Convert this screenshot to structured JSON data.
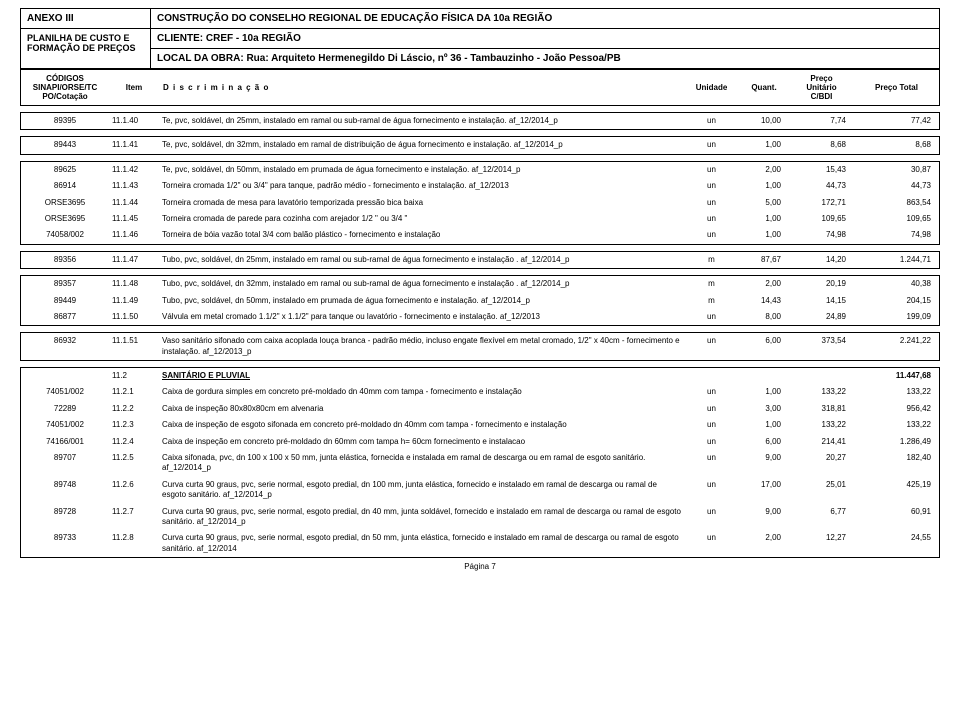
{
  "header": {
    "anexo": "ANEXO III",
    "titulo": "CONSTRUÇÃO DO CONSELHO REGIONAL DE EDUCAÇÃO FÍSICA DA 10a REGIÃO",
    "planilha_l1": "PLANILHA DE CUSTO E",
    "planilha_l2": "FORMAÇÃO DE PREÇOS",
    "cliente": "CLIENTE: CREF - 10a REGIÃO",
    "local": "LOCAL DA OBRA: Rua: Arquiteto Hermenegildo Di Láscio, nº 36 - Tambauzinho - João Pessoa/PB"
  },
  "cols": {
    "c0a": "CÓDIGOS",
    "c0b": "SINAPI/ORSE/TC",
    "c0c": "PO/Cotação",
    "c1": "Item",
    "c2": "D i s c r i m i n a ç ã o",
    "c3": "Unidade",
    "c4": "Quant.",
    "c5a": "Preço",
    "c5b": "Unitário",
    "c5c": "C/BDI",
    "c6": "Preço Total"
  },
  "g1": [
    {
      "code": "89395",
      "item": "11.1.40",
      "desc": "Te, pvc, soldável, dn 25mm, instalado em ramal ou sub-ramal de água fornecimento e instalação. af_12/2014_p",
      "un": "un",
      "q": "10,00",
      "pu": "7,74",
      "pt": "77,42"
    }
  ],
  "g2": [
    {
      "code": "89443",
      "item": "11.1.41",
      "desc": "Te, pvc, soldável, dn 32mm, instalado em ramal de distribuição de água fornecimento e instalação. af_12/2014_p",
      "un": "un",
      "q": "1,00",
      "pu": "8,68",
      "pt": "8,68"
    }
  ],
  "g3": [
    {
      "code": "89625",
      "item": "11.1.42",
      "desc": "Te, pvc, soldável, dn 50mm, instalado em prumada de água fornecimento e instalação. af_12/2014_p",
      "un": "un",
      "q": "2,00",
      "pu": "15,43",
      "pt": "30,87"
    },
    {
      "code": "86914",
      "item": "11.1.43",
      "desc": "Torneira cromada 1/2\" ou 3/4\" para tanque, padrão médio - fornecimento e instalação. af_12/2013",
      "un": "un",
      "q": "1,00",
      "pu": "44,73",
      "pt": "44,73"
    },
    {
      "code": "ORSE3695",
      "item": "11.1.44",
      "desc": "Torneira cromada de mesa para lavatório temporizada pressão bica baixa",
      "un": "un",
      "q": "5,00",
      "pu": "172,71",
      "pt": "863,54"
    },
    {
      "code": "ORSE3695",
      "item": "11.1.45",
      "desc": "Torneira cromada de parede para cozinha com arejador 1/2 \" ou 3/4 \"",
      "un": "un",
      "q": "1,00",
      "pu": "109,65",
      "pt": "109,65"
    },
    {
      "code": "74058/002",
      "item": "11.1.46",
      "desc": "Torneira de bóia vazão total 3/4 com balão plástico - fornecimento e instalação",
      "un": "un",
      "q": "1,00",
      "pu": "74,98",
      "pt": "74,98"
    }
  ],
  "g4": [
    {
      "code": "89356",
      "item": "11.1.47",
      "desc": "Tubo, pvc, soldável, dn 25mm, instalado em ramal ou sub-ramal de água fornecimento e instalação . af_12/2014_p",
      "un": "m",
      "q": "87,67",
      "pu": "14,20",
      "pt": "1.244,71"
    }
  ],
  "g5": [
    {
      "code": "89357",
      "item": "11.1.48",
      "desc": "Tubo, pvc, soldável, dn 32mm, instalado em ramal ou sub-ramal de água fornecimento e instalação . af_12/2014_p",
      "un": "m",
      "q": "2,00",
      "pu": "20,19",
      "pt": "40,38"
    },
    {
      "code": "89449",
      "item": "11.1.49",
      "desc": "Tubo, pvc, soldável, dn 50mm, instalado em prumada de água fornecimento e instalação. af_12/2014_p",
      "un": "m",
      "q": "14,43",
      "pu": "14,15",
      "pt": "204,15"
    },
    {
      "code": "86877",
      "item": "11.1.50",
      "desc": "Válvula em metal cromado 1.1/2\" x 1.1/2\" para tanque ou lavatório - fornecimento e instalação. af_12/2013",
      "un": "un",
      "q": "8,00",
      "pu": "24,89",
      "pt": "199,09"
    }
  ],
  "g6": [
    {
      "code": "86932",
      "item": "11.1.51",
      "desc": "Vaso sanitário sifonado com caixa acoplada louça branca - padrão médio, incluso engate flexível em metal cromado, 1/2\" x 40cm - fornecimento e instalação. af_12/2013_p",
      "un": "un",
      "q": "6,00",
      "pu": "373,54",
      "pt": "2.241,22"
    }
  ],
  "g7_title": {
    "item": "11.2",
    "desc": "SANITÁRIO E PLUVIAL",
    "pt": "11.447,68"
  },
  "g7": [
    {
      "code": "74051/002",
      "item": "11.2.1",
      "desc": "Caixa de gordura simples em concreto pré-moldado dn 40mm com tampa - fornecimento e instalação",
      "un": "un",
      "q": "1,00",
      "pu": "133,22",
      "pt": "133,22"
    },
    {
      "code": "72289",
      "item": "11.2.2",
      "desc": "Caixa de inspeção 80x80x80cm em alvenaria",
      "un": "un",
      "q": "3,00",
      "pu": "318,81",
      "pt": "956,42"
    },
    {
      "code": "74051/002",
      "item": "11.2.3",
      "desc": "Caixa de inspeção de esgoto sifonada em concreto pré-moldado dn 40mm com tampa - fornecimento e instalação",
      "un": "un",
      "q": "1,00",
      "pu": "133,22",
      "pt": "133,22"
    },
    {
      "code": "74166/001",
      "item": "11.2.4",
      "desc": "Caixa de inspeção em concreto pré-moldado dn 60mm com tampa h= 60cm fornecimento e instalacao",
      "un": "un",
      "q": "6,00",
      "pu": "214,41",
      "pt": "1.286,49"
    },
    {
      "code": "89707",
      "item": "11.2.5",
      "desc": "Caixa sifonada, pvc, dn 100 x 100 x 50 mm, junta elástica, fornecida e instalada em ramal de descarga ou em ramal de esgoto sanitário. af_12/2014_p",
      "un": "un",
      "q": "9,00",
      "pu": "20,27",
      "pt": "182,40"
    },
    {
      "code": "89748",
      "item": "11.2.6",
      "desc": "Curva curta 90 graus, pvc, serie normal, esgoto predial, dn 100 mm, junta elástica, fornecido e instalado em ramal de descarga ou ramal de esgoto sanitário. af_12/2014_p",
      "un": "un",
      "q": "17,00",
      "pu": "25,01",
      "pt": "425,19"
    },
    {
      "code": "89728",
      "item": "11.2.7",
      "desc": "Curva curta 90 graus, pvc, serie normal, esgoto predial, dn 40 mm, junta soldável, fornecido e instalado em ramal de descarga ou ramal de esgoto sanitário. af_12/2014_p",
      "un": "un",
      "q": "9,00",
      "pu": "6,77",
      "pt": "60,91"
    },
    {
      "code": "89733",
      "item": "11.2.8",
      "desc": "Curva curta 90 graus, pvc, serie normal, esgoto predial, dn 50 mm, junta elástica, fornecido e instalado em ramal de descarga ou ramal de esgoto sanitário. af_12/2014",
      "un": "un",
      "q": "2,00",
      "pu": "12,27",
      "pt": "24,55"
    }
  ],
  "footer": "Página 7"
}
